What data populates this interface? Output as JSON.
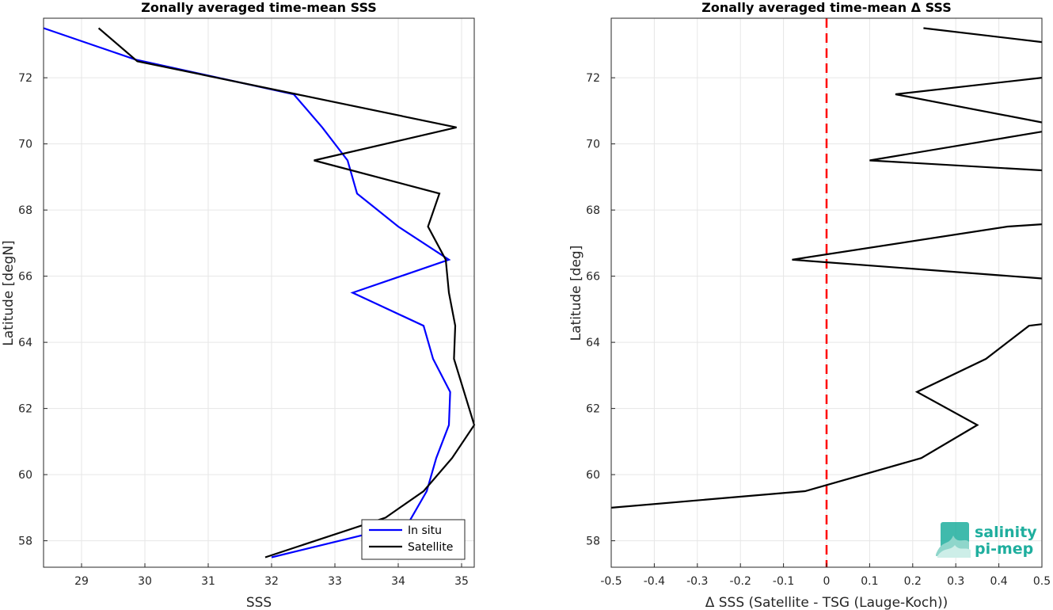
{
  "chart_data": [
    {
      "type": "line",
      "title": "Zonally averaged time-mean SSS",
      "xlabel": "SSS",
      "ylabel": "Latitude [degN]",
      "xlim": [
        28.4,
        35.2
      ],
      "ylim": [
        57.2,
        73.8
      ],
      "xticks": [
        29,
        30,
        31,
        32,
        33,
        34,
        35
      ],
      "yticks": [
        58,
        60,
        62,
        64,
        66,
        68,
        70,
        72
      ],
      "grid": true,
      "legend_position": "bottom-right",
      "series": [
        {
          "name": "In situ",
          "color": "#0000ff",
          "points": [
            [
              28.4,
              73.5
            ],
            [
              29.85,
              72.55
            ],
            [
              32.35,
              71.5
            ],
            [
              32.8,
              70.5
            ],
            [
              33.2,
              69.5
            ],
            [
              33.35,
              68.5
            ],
            [
              34.0,
              67.5
            ],
            [
              34.8,
              66.5
            ],
            [
              33.28,
              65.5
            ],
            [
              34.4,
              64.5
            ],
            [
              34.55,
              63.5
            ],
            [
              34.82,
              62.5
            ],
            [
              34.8,
              61.5
            ],
            [
              34.6,
              60.5
            ],
            [
              34.45,
              59.5
            ],
            [
              34.15,
              58.5
            ],
            [
              32.0,
              57.5
            ]
          ]
        },
        {
          "name": "Satellite",
          "color": "#000000",
          "points": [
            [
              29.27,
              73.5
            ],
            [
              29.88,
              72.5
            ],
            [
              32.4,
              71.5
            ],
            [
              34.92,
              70.5
            ],
            [
              32.67,
              69.5
            ],
            [
              34.65,
              68.5
            ],
            [
              34.47,
              67.5
            ],
            [
              34.75,
              66.5
            ],
            [
              34.8,
              65.5
            ],
            [
              34.9,
              64.5
            ],
            [
              34.88,
              63.5
            ],
            [
              35.2,
              61.5
            ],
            [
              34.85,
              60.5
            ],
            [
              34.4,
              59.5
            ],
            [
              33.8,
              58.7
            ],
            [
              31.9,
              57.5
            ]
          ]
        }
      ]
    },
    {
      "type": "line",
      "title": "Zonally averaged time-mean Δ SSS",
      "xlabel": "Δ SSS (Satellite - TSG (Lauge-Koch))",
      "ylabel": "Latitude [deg]",
      "xlim": [
        -0.5,
        0.5
      ],
      "ylim": [
        57.2,
        73.8
      ],
      "xticks": [
        -0.5,
        -0.4,
        -0.3,
        -0.2,
        -0.1,
        0,
        0.1,
        0.2,
        0.3,
        0.4,
        0.5
      ],
      "xticklabels": [
        "-0.5",
        "-0.4",
        "-0.3",
        "-0.2",
        "-0.1",
        "0",
        "0.1",
        "0.2",
        "0.3",
        "0.4",
        "0.5"
      ],
      "yticks": [
        58,
        60,
        62,
        64,
        66,
        68,
        70,
        72
      ],
      "grid": true,
      "reference_line": {
        "x": 0,
        "color": "#ff0000",
        "style": "dashed"
      },
      "series": [
        {
          "color": "#000000",
          "segments": [
            [
              [
                -0.5,
                59.0
              ],
              [
                -0.05,
                59.5
              ],
              [
                0.22,
                60.5
              ],
              [
                0.35,
                61.5
              ],
              [
                0.21,
                62.5
              ],
              [
                0.37,
                63.5
              ],
              [
                0.47,
                64.5
              ],
              [
                0.5,
                64.55
              ]
            ],
            [
              [
                0.5,
                65.93
              ],
              [
                -0.08,
                66.5
              ],
              [
                0.42,
                67.5
              ],
              [
                0.5,
                67.57
              ]
            ],
            [
              [
                0.5,
                69.2
              ],
              [
                0.1,
                69.5
              ],
              [
                0.5,
                70.37
              ]
            ],
            [
              [
                0.5,
                70.65
              ],
              [
                0.16,
                71.5
              ],
              [
                0.5,
                72.0
              ]
            ],
            [
              [
                0.5,
                73.08
              ],
              [
                0.225,
                73.5
              ]
            ]
          ]
        }
      ]
    }
  ],
  "logo": {
    "line1": "salinity",
    "line2": "pi-mep"
  }
}
